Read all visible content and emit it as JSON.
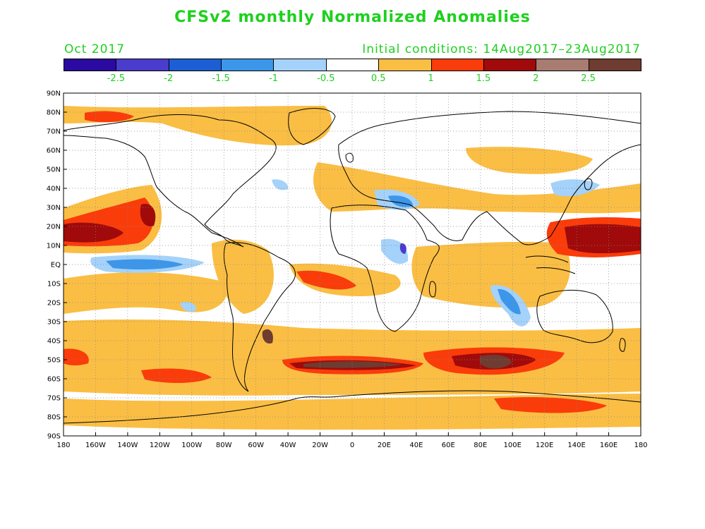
{
  "title": "CFSv2 monthly Normalized Anomalies",
  "month_label": "Oct 2017",
  "initial_conditions": "Initial conditions: 14Aug2017–23Aug2017",
  "colorbar": {
    "colors": [
      "#2a0aa0",
      "#4a3ccc",
      "#1c5ed4",
      "#3c96ea",
      "#a4d2fa",
      "#ffffff",
      "#fabe44",
      "#fa3c0a",
      "#a00a0a",
      "#a87c70",
      "#6e3c30"
    ],
    "labels": [
      "-2.5",
      "-2",
      "-1.5",
      "-1",
      "-0.5",
      "0.5",
      "1",
      "1.5",
      "2",
      "2.5"
    ]
  },
  "axes": {
    "lat_labels": [
      "90N",
      "80N",
      "70N",
      "60N",
      "50N",
      "40N",
      "30N",
      "20N",
      "10N",
      "EQ",
      "10S",
      "20S",
      "30S",
      "40S",
      "50S",
      "60S",
      "70S",
      "80S",
      "90S"
    ],
    "lon_labels": [
      "180",
      "160W",
      "140W",
      "120W",
      "100W",
      "80W",
      "60W",
      "40W",
      "20W",
      "0",
      "20E",
      "40E",
      "60E",
      "80E",
      "100E",
      "120E",
      "140E",
      "160E",
      "180"
    ]
  }
}
